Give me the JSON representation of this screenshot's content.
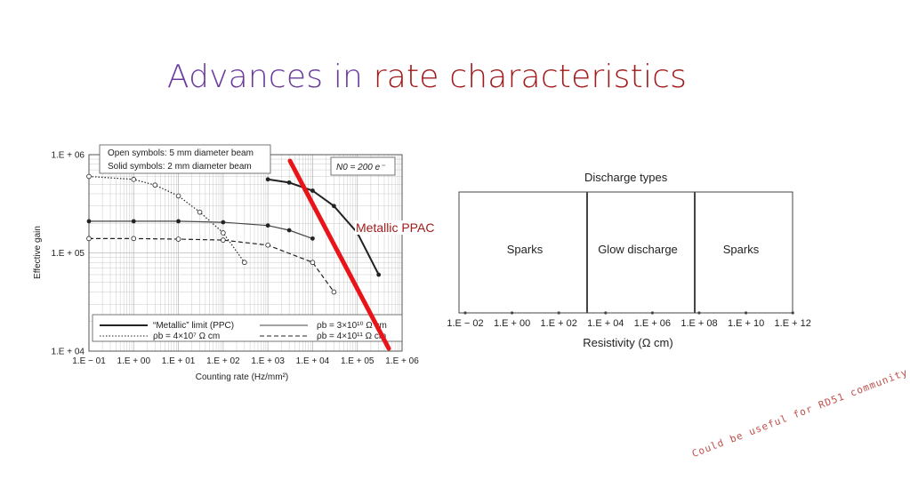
{
  "title": {
    "part1": "Advances in",
    "part2": "rate characteristics"
  },
  "left_chart": {
    "legend_top": [
      "Open symbols: 5 mm diameter beam",
      "Solid symbols: 2 mm diameter beam"
    ],
    "n0_label": "N0 = 200 e⁻",
    "ylabel": "Effective gain",
    "xlabel": "Counting rate (Hz/mm²)",
    "yticks": [
      "1.E + 06",
      "1.E + 05",
      "1.E + 04"
    ],
    "xticks": [
      "1.E − 01",
      "1.E + 00",
      "1.E + 01",
      "1.E + 02",
      "1.E + 03",
      "1.E + 04",
      "1.E + 05",
      "1.E + 06"
    ],
    "legend_bottom": [
      "“Metallic” limit (PPC)",
      "ρb = 4×10⁷ Ω cm",
      "ρb = 3×10¹⁰ Ω cm",
      "ρb = 4×10¹¹ Ω cm"
    ]
  },
  "chart_data": {
    "type": "scatter",
    "title": "",
    "xlabel": "Counting rate (Hz/mm²)",
    "ylabel": "Effective gain",
    "x_scale": "log",
    "y_scale": "log",
    "xlim": [
      0.1,
      1000000
    ],
    "ylim": [
      10000,
      1000000
    ],
    "grid": true,
    "series": [
      {
        "name": "“Metallic” limit (PPC)",
        "x": [
          1000,
          3000,
          10000,
          30000,
          100000,
          300000
        ],
        "y": [
          560000,
          520000,
          430000,
          300000,
          160000,
          60000
        ]
      },
      {
        "name": "ρb = 4×10⁷ Ω cm",
        "x": [
          0.1,
          1,
          3,
          10,
          30,
          100,
          300
        ],
        "y": [
          600000,
          560000,
          490000,
          380000,
          260000,
          160000,
          80000
        ]
      },
      {
        "name": "ρb = 3×10¹⁰ Ω cm",
        "x": [
          0.1,
          1,
          10,
          100,
          1000,
          3000,
          10000
        ],
        "y": [
          210000,
          210000,
          210000,
          205000,
          190000,
          170000,
          140000
        ]
      },
      {
        "name": "ρb = 4×10¹¹ Ω cm",
        "x": [
          0.1,
          1,
          10,
          100,
          1000,
          10000,
          30000
        ],
        "y": [
          140000,
          140000,
          138000,
          135000,
          120000,
          80000,
          40000
        ]
      }
    ]
  },
  "right_chart": {
    "title": "Discharge types",
    "regions": [
      "Sparks",
      "Glow discharge",
      "Sparks"
    ],
    "xticks": [
      "1.E − 02",
      "1.E + 00",
      "1.E + 02",
      "1.E + 04",
      "1.E + 06",
      "1.E + 08",
      "1.E + 10",
      "1.E + 12"
    ],
    "xlabel": "Resistivity (Ω cm)"
  },
  "overlay": {
    "label": "Metallic PPAC",
    "line_color": "#e8141a"
  },
  "footer_note": "Could be useful for RD51 community",
  "colors": {
    "title_part1": "#6b3a9e",
    "title_part2": "#a11b1b",
    "footer": "#c0504d"
  }
}
